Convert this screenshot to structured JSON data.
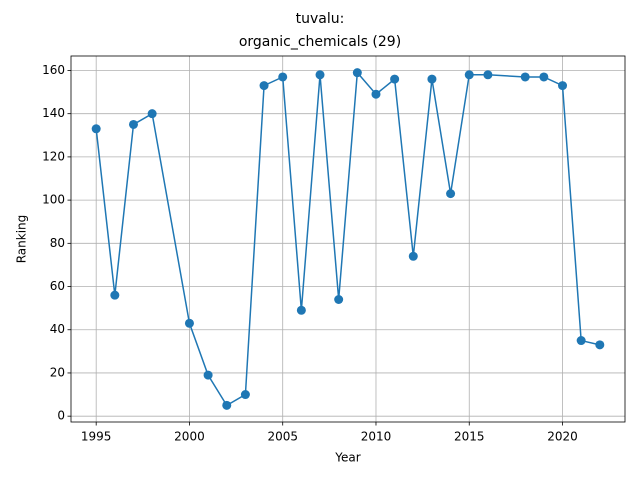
{
  "chart_data": {
    "type": "line",
    "title": "tuvalu:\norganic_chemicals (29)",
    "xlabel": "Year",
    "ylabel": "Ranking",
    "x": [
      1995,
      1996,
      1997,
      1998,
      2000,
      2001,
      2002,
      2003,
      2004,
      2005,
      2006,
      2007,
      2008,
      2009,
      2010,
      2011,
      2012,
      2013,
      2014,
      2015,
      2016,
      2018,
      2019,
      2020,
      2021,
      2022
    ],
    "values": [
      133,
      56,
      135,
      140,
      43,
      19,
      5,
      10,
      153,
      157,
      49,
      158,
      54,
      159,
      149,
      156,
      74,
      156,
      103,
      158,
      158,
      157,
      157,
      153,
      35,
      33
    ],
    "color": "#1f77b4",
    "xlim": [
      1993.65,
      2023.35
    ],
    "ylim": [
      -2.7,
      166.7
    ],
    "xticks": [
      1995,
      2000,
      2005,
      2010,
      2015,
      2020
    ],
    "yticks": [
      0,
      20,
      40,
      60,
      80,
      100,
      120,
      140,
      160
    ],
    "grid": true
  }
}
